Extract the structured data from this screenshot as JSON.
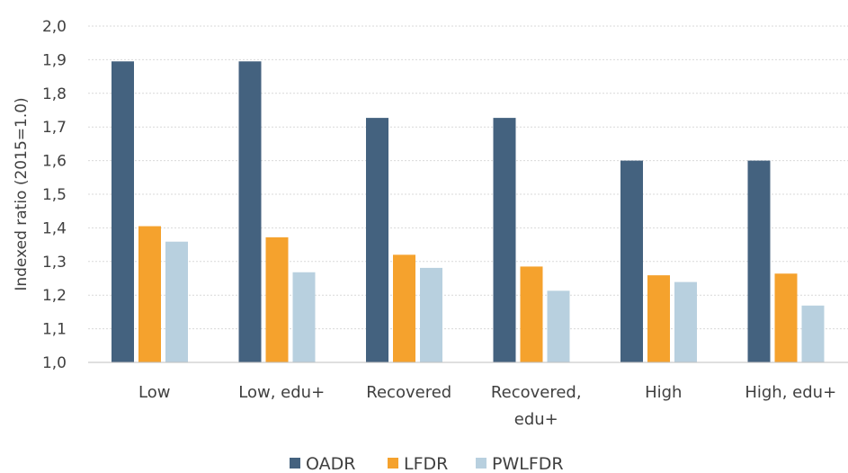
{
  "chart_data": {
    "type": "bar",
    "title": "",
    "xlabel": "",
    "ylabel": "Indexed ratio (2015=1.0)",
    "ylim": [
      1.0,
      2.0
    ],
    "yticks": [
      "1,0",
      "1,1",
      "1,2",
      "1,3",
      "1,4",
      "1,5",
      "1,6",
      "1,7",
      "1,8",
      "1,9",
      "2,0"
    ],
    "categories": [
      [
        "Low"
      ],
      [
        "Low, edu+"
      ],
      [
        "Recovered"
      ],
      [
        "Recovered,",
        "edu+"
      ],
      [
        "High"
      ],
      [
        "High, edu+"
      ]
    ],
    "series": [
      {
        "name": "OADR",
        "color": "#44627f",
        "values": [
          1.895,
          1.895,
          1.727,
          1.727,
          1.6,
          1.6
        ]
      },
      {
        "name": "LFDR",
        "color": "#f5a22d",
        "values": [
          1.405,
          1.372,
          1.32,
          1.285,
          1.259,
          1.264
        ]
      },
      {
        "name": "PWLFDR",
        "color": "#b8d0df",
        "values": [
          1.359,
          1.268,
          1.281,
          1.213,
          1.239,
          1.169
        ]
      }
    ],
    "grid": true,
    "legend_position": "bottom"
  }
}
